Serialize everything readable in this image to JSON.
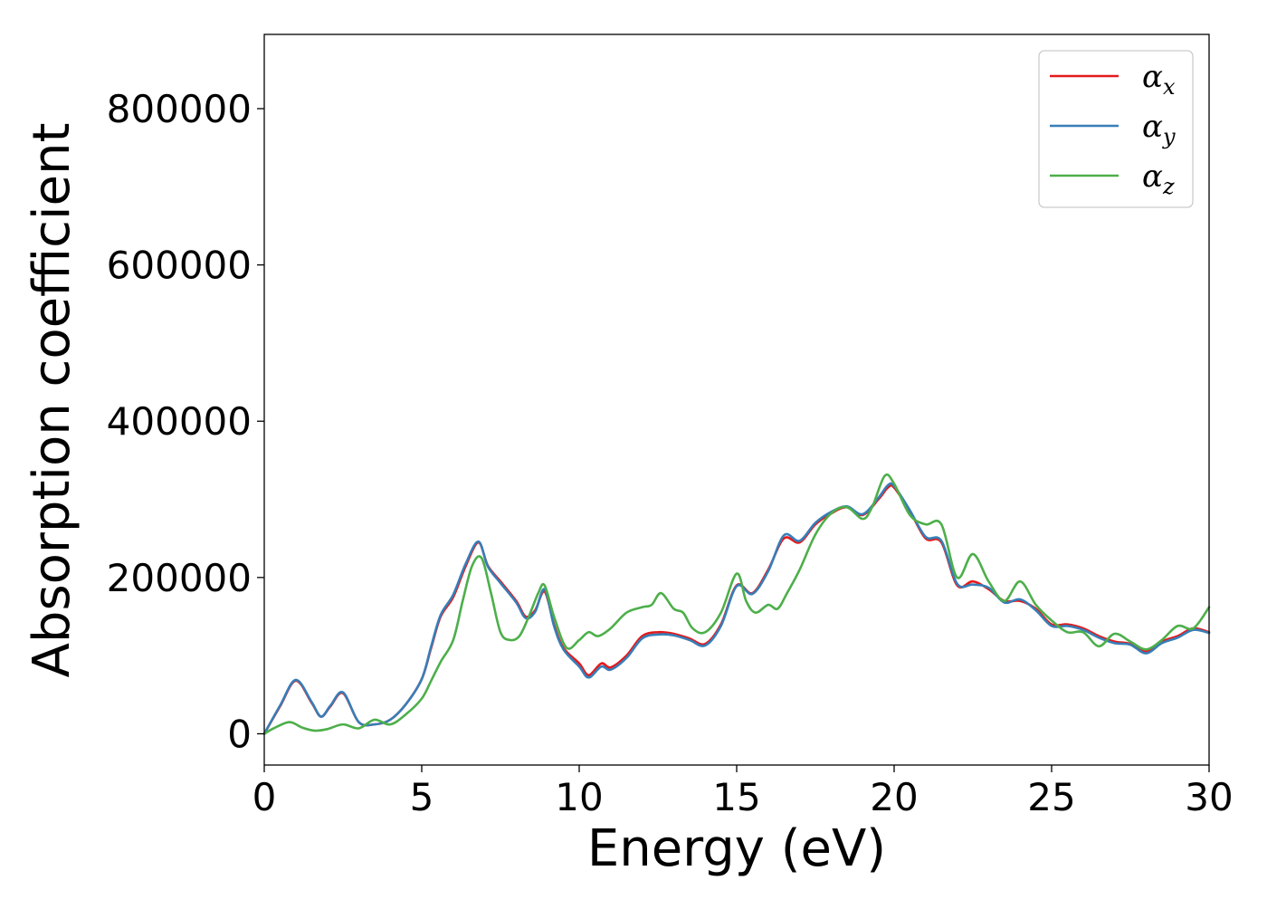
{
  "chart_data": {
    "type": "line",
    "title": "",
    "xlabel": "Energy (eV)",
    "ylabel": "Absorption coefficient",
    "xlim": [
      0,
      30
    ],
    "ylim": [
      -40000,
      895000
    ],
    "xticks": [
      0,
      5,
      10,
      15,
      20,
      25,
      30
    ],
    "yticks": [
      0,
      200000,
      400000,
      600000,
      800000
    ],
    "grid": false,
    "legend_position": "top-right",
    "series": [
      {
        "name": "α",
        "subscript": "x",
        "color": "#e41a1c",
        "x": [
          0,
          0.5,
          1.0,
          1.5,
          1.8,
          2.1,
          2.5,
          3.0,
          3.5,
          4.0,
          4.5,
          5.0,
          5.3,
          5.6,
          6.0,
          6.4,
          6.8,
          7.1,
          7.5,
          8.0,
          8.3,
          8.6,
          8.9,
          9.2,
          9.5,
          10.0,
          10.3,
          10.7,
          11.0,
          11.5,
          12.0,
          12.5,
          13.0,
          13.5,
          14.0,
          14.5,
          15.0,
          15.5,
          16.0,
          16.5,
          17.0,
          17.5,
          18.0,
          18.5,
          19.0,
          19.5,
          19.8,
          20.0,
          20.5,
          21.0,
          21.5,
          22.0,
          22.5,
          23.0,
          23.5,
          24.0,
          24.5,
          25.0,
          25.5,
          26.0,
          26.5,
          27.0,
          27.5,
          28.0,
          28.5,
          29.0,
          29.5,
          30.0
        ],
        "values": [
          0,
          35000,
          68000,
          40000,
          22000,
          35000,
          52000,
          15000,
          12000,
          18000,
          38000,
          70000,
          110000,
          150000,
          175000,
          215000,
          245000,
          215000,
          195000,
          170000,
          150000,
          158000,
          182000,
          140000,
          110000,
          90000,
          75000,
          90000,
          85000,
          100000,
          125000,
          130000,
          128000,
          122000,
          115000,
          140000,
          190000,
          180000,
          210000,
          250000,
          245000,
          268000,
          282000,
          290000,
          280000,
          300000,
          315000,
          315000,
          285000,
          250000,
          245000,
          190000,
          195000,
          185000,
          170000,
          170000,
          160000,
          140000,
          140000,
          135000,
          125000,
          118000,
          115000,
          105000,
          118000,
          125000,
          135000,
          130000
        ]
      },
      {
        "name": "α",
        "subscript": "y",
        "color": "#377eb8",
        "x": [
          0,
          0.5,
          1.0,
          1.5,
          1.8,
          2.1,
          2.5,
          3.0,
          3.5,
          4.0,
          4.5,
          5.0,
          5.3,
          5.6,
          6.0,
          6.4,
          6.8,
          7.1,
          7.5,
          8.0,
          8.3,
          8.6,
          8.9,
          9.2,
          9.5,
          10.0,
          10.3,
          10.7,
          11.0,
          11.5,
          12.0,
          12.5,
          13.0,
          13.5,
          14.0,
          14.5,
          15.0,
          15.5,
          16.0,
          16.5,
          17.0,
          17.5,
          18.0,
          18.5,
          19.0,
          19.5,
          19.8,
          20.0,
          20.5,
          21.0,
          21.5,
          22.0,
          22.5,
          23.0,
          23.5,
          24.0,
          24.5,
          25.0,
          25.5,
          26.0,
          26.5,
          27.0,
          27.5,
          28.0,
          28.5,
          29.0,
          29.5,
          30.0
        ],
        "values": [
          0,
          36000,
          69000,
          41000,
          22000,
          36000,
          53000,
          15000,
          12000,
          18000,
          38000,
          70000,
          112000,
          152000,
          178000,
          218000,
          246000,
          214000,
          193000,
          168000,
          148000,
          156000,
          185000,
          138000,
          108000,
          86000,
          72000,
          86000,
          82000,
          97000,
          122000,
          127000,
          126000,
          120000,
          113000,
          138000,
          189000,
          179000,
          208000,
          254000,
          247000,
          270000,
          284000,
          291000,
          281000,
          302000,
          318000,
          317000,
          286000,
          252000,
          247000,
          192000,
          191000,
          187000,
          168000,
          172000,
          158000,
          138000,
          138000,
          133000,
          123000,
          116000,
          114000,
          103000,
          116000,
          123000,
          133000,
          129000
        ]
      },
      {
        "name": "α",
        "subscript": "z",
        "color": "#4daf4a",
        "x": [
          0,
          0.3,
          0.8,
          1.2,
          1.6,
          2.0,
          2.5,
          3.0,
          3.5,
          4.0,
          4.5,
          5.0,
          5.3,
          5.6,
          6.0,
          6.3,
          6.6,
          6.9,
          7.2,
          7.5,
          7.8,
          8.1,
          8.4,
          8.7,
          8.9,
          9.2,
          9.6,
          10.0,
          10.3,
          10.6,
          11.0,
          11.5,
          12.0,
          12.3,
          12.6,
          13.0,
          13.3,
          13.6,
          14.0,
          14.5,
          15.0,
          15.3,
          15.6,
          16.0,
          16.3,
          16.6,
          17.0,
          17.5,
          18.0,
          18.5,
          19.0,
          19.3,
          19.7,
          20.0,
          20.5,
          21.0,
          21.5,
          22.0,
          22.5,
          23.0,
          23.5,
          24.0,
          24.5,
          25.0,
          25.5,
          26.0,
          26.5,
          27.0,
          27.5,
          28.0,
          28.5,
          29.0,
          29.5,
          30.0
        ],
        "values": [
          0,
          7000,
          15000,
          8000,
          4000,
          6000,
          12000,
          7000,
          18000,
          12000,
          25000,
          45000,
          68000,
          92000,
          120000,
          170000,
          215000,
          225000,
          180000,
          130000,
          120000,
          125000,
          150000,
          180000,
          190000,
          150000,
          110000,
          120000,
          130000,
          125000,
          135000,
          155000,
          162000,
          165000,
          180000,
          160000,
          155000,
          135000,
          130000,
          155000,
          205000,
          170000,
          155000,
          165000,
          160000,
          180000,
          210000,
          255000,
          282000,
          290000,
          275000,
          290000,
          330000,
          320000,
          280000,
          268000,
          268000,
          200000,
          230000,
          195000,
          170000,
          195000,
          165000,
          145000,
          130000,
          130000,
          112000,
          128000,
          118000,
          108000,
          120000,
          138000,
          135000,
          162000
        ]
      }
    ]
  }
}
